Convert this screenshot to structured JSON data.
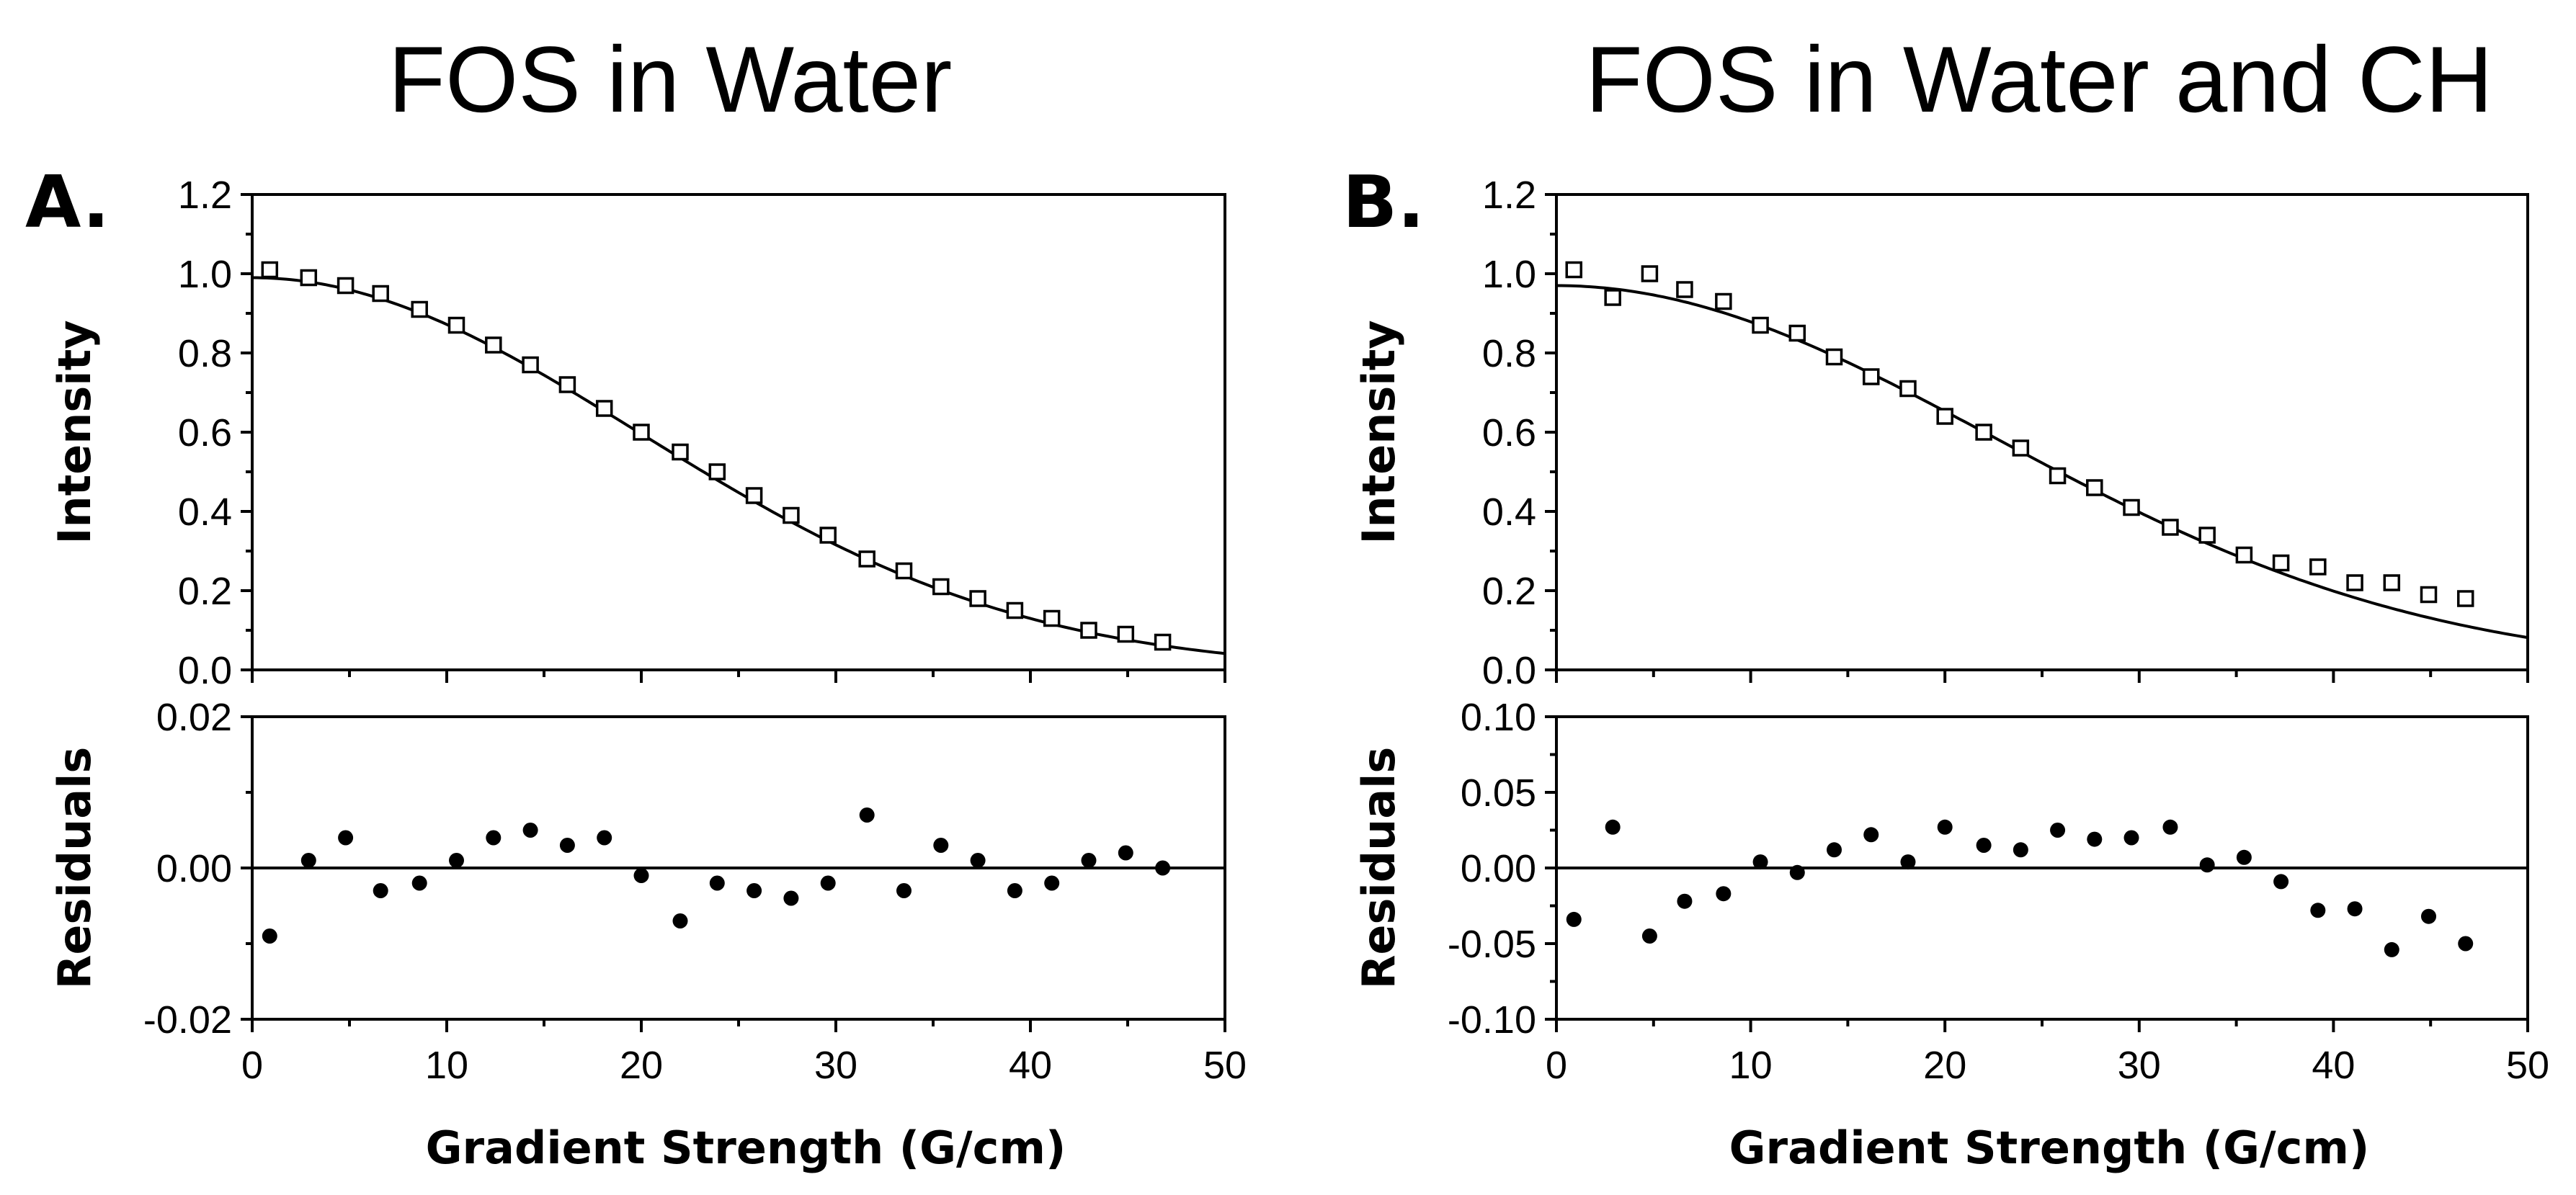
{
  "chart_data": [
    {
      "type": "scatter",
      "panel_label": "A.",
      "title": "FOS in Water",
      "xlabel": "Gradient Strength (G/cm)",
      "xlim": [
        0,
        50
      ],
      "xticks": [
        0,
        10,
        20,
        30,
        40,
        50
      ],
      "xtick_labels": [
        "0",
        "10",
        "20",
        "30",
        "40",
        "50"
      ],
      "intensity": {
        "ylabel": "Intensity",
        "ylim": [
          0,
          1.2
        ],
        "yticks": [
          0,
          0.2,
          0.4,
          0.6,
          0.8,
          1.0,
          1.2
        ],
        "ytick_labels": [
          "0.0",
          "0.2",
          "0.4",
          "0.6",
          "0.8",
          "1.0",
          "1.2"
        ],
        "x": [
          0.9,
          2.9,
          4.8,
          6.6,
          8.6,
          10.5,
          12.4,
          14.3,
          16.2,
          18.1,
          20.0,
          22.0,
          23.9,
          25.8,
          27.7,
          29.6,
          31.6,
          33.5,
          35.4,
          37.3,
          39.2,
          41.1,
          43.0,
          44.9,
          46.8
        ],
        "values": [
          1.01,
          0.99,
          0.97,
          0.95,
          0.91,
          0.87,
          0.82,
          0.77,
          0.72,
          0.66,
          0.6,
          0.55,
          0.5,
          0.44,
          0.39,
          0.34,
          0.28,
          0.25,
          0.21,
          0.18,
          0.15,
          0.13,
          0.1,
          0.09,
          0.07
        ],
        "fit": {
          "name": "fit",
          "y0": 0.99,
          "k": 0.00127
        }
      },
      "residuals": {
        "ylabel": "Residuals",
        "ylim": [
          -0.02,
          0.02
        ],
        "yticks": [
          -0.02,
          0.0,
          0.02
        ],
        "ytick_labels": [
          "-0.02",
          "0.00",
          "0.02"
        ],
        "x": [
          0.9,
          2.9,
          4.8,
          6.6,
          8.6,
          10.5,
          12.4,
          14.3,
          16.2,
          18.1,
          20.0,
          22.0,
          23.9,
          25.8,
          27.7,
          29.6,
          31.6,
          33.5,
          35.4,
          37.3,
          39.2,
          41.1,
          43.0,
          44.9,
          46.8
        ],
        "values": [
          -0.009,
          0.001,
          0.004,
          -0.003,
          -0.002,
          0.001,
          0.004,
          0.005,
          0.003,
          0.004,
          -0.001,
          -0.007,
          -0.002,
          -0.003,
          -0.004,
          -0.002,
          0.007,
          -0.003,
          0.003,
          0.001,
          -0.003,
          -0.002,
          0.001,
          0.002,
          0.0
        ]
      }
    },
    {
      "type": "scatter",
      "panel_label": "B.",
      "title": "FOS in Water and CH",
      "xlabel": "Gradient Strength (G/cm)",
      "xlim": [
        0,
        50
      ],
      "xticks": [
        0,
        10,
        20,
        30,
        40,
        50
      ],
      "xtick_labels": [
        "0",
        "10",
        "20",
        "30",
        "40",
        "50"
      ],
      "intensity": {
        "ylabel": "Intensity",
        "ylim": [
          0,
          1.2
        ],
        "yticks": [
          0,
          0.2,
          0.4,
          0.6,
          0.8,
          1.0,
          1.2
        ],
        "ytick_labels": [
          "0.0",
          "0.2",
          "0.4",
          "0.6",
          "0.8",
          "1.0",
          "1.2"
        ],
        "x": [
          0.9,
          2.9,
          4.8,
          6.6,
          8.6,
          10.5,
          12.4,
          14.3,
          16.2,
          18.1,
          20.0,
          22.0,
          23.9,
          25.8,
          27.7,
          29.6,
          31.6,
          33.5,
          35.4,
          37.3,
          39.2,
          41.1,
          43.0,
          44.9,
          46.8
        ],
        "values": [
          1.01,
          0.94,
          1.0,
          0.96,
          0.93,
          0.87,
          0.85,
          0.79,
          0.74,
          0.71,
          0.64,
          0.6,
          0.56,
          0.49,
          0.46,
          0.41,
          0.36,
          0.34,
          0.29,
          0.27,
          0.26,
          0.22,
          0.22,
          0.19,
          0.18
        ],
        "fit": {
          "name": "fit",
          "y0": 0.97,
          "k": 0.00099
        }
      },
      "residuals": {
        "ylabel": "Residuals",
        "ylim": [
          -0.1,
          0.1
        ],
        "yticks": [
          -0.1,
          -0.05,
          0.0,
          0.05,
          0.1
        ],
        "ytick_labels": [
          "-0.10",
          "-0.05",
          "0.00",
          "0.05",
          "0.10"
        ],
        "x": [
          0.9,
          2.9,
          4.8,
          6.6,
          8.6,
          10.5,
          12.4,
          14.3,
          16.2,
          18.1,
          20.0,
          22.0,
          23.9,
          25.8,
          27.7,
          29.6,
          31.6,
          33.5,
          35.4,
          37.3,
          39.2,
          41.1,
          43.0,
          44.9,
          46.8
        ],
        "values": [
          -0.034,
          0.027,
          -0.045,
          -0.022,
          -0.017,
          0.004,
          -0.003,
          0.012,
          0.022,
          0.004,
          0.027,
          0.015,
          0.012,
          0.025,
          0.019,
          0.02,
          0.027,
          0.002,
          0.007,
          -0.009,
          -0.028,
          -0.027,
          -0.054,
          -0.032,
          -0.05
        ]
      }
    }
  ]
}
